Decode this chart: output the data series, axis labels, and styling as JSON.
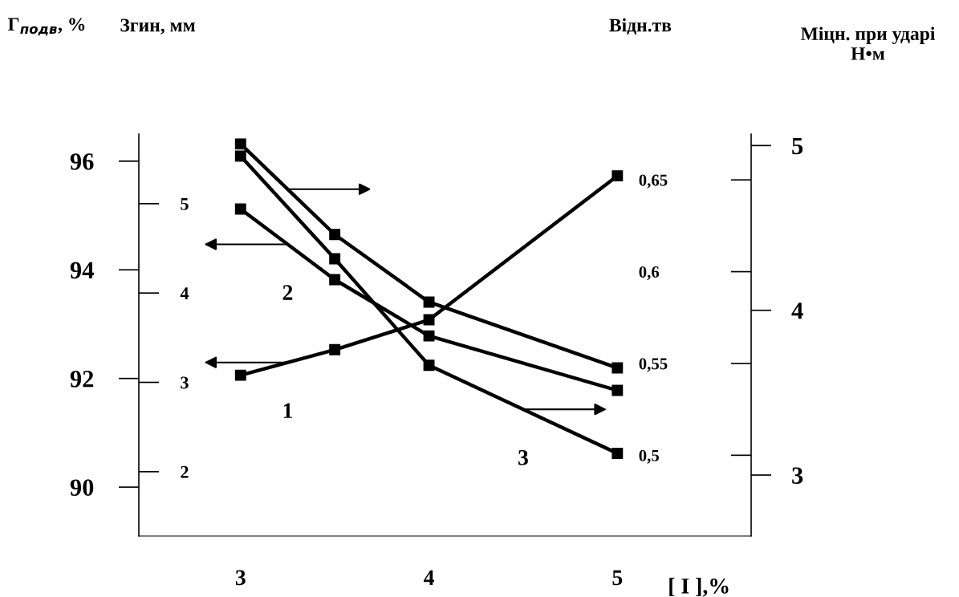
{
  "chart_data": [
    {
      "type": "line",
      "marker": "square",
      "line_style": "solid",
      "grid": false,
      "x": [
        3,
        3.5,
        4,
        5
      ],
      "xlim": [
        2.46,
        5.71
      ],
      "xticks": [
        3,
        4,
        5
      ],
      "xlabel": "[ I ],%",
      "ylabel": "Г$_{подв}$, %",
      "ylim": [
        89.1,
        96.5
      ],
      "yticks": [
        90,
        92,
        94,
        96
      ],
      "y2label": "Згин, мм",
      "y2lim": [
        1.28,
        5.78
      ],
      "y2ticks": [
        2,
        3,
        4,
        5
      ],
      "series": [
        {
          "name": "1",
          "color": "#000000",
          "values": [
            92.06,
            92.53,
            93.08,
            95.73
          ]
        },
        {
          "name": "2",
          "color": "#000000",
          "axis": "y2",
          "values": [
            4.94,
            4.15,
            3.52,
            2.91
          ]
        }
      ]
    },
    {
      "type": "line",
      "marker": "square",
      "line_style": "solid",
      "grid": false,
      "tick_labels": "y",
      "x": [
        3,
        3.5,
        4,
        5
      ],
      "xlim": [
        2.46,
        5.71
      ],
      "y2label": "Відн.тв",
      "y2lim": [
        0.456,
        0.675
      ],
      "y2ticks": [
        {
          "value": 0.5,
          "label": "0,5"
        },
        {
          "value": 0.55,
          "label": "0,55"
        },
        {
          "value": 0.6,
          "label": "0,6"
        },
        {
          "value": 0.65,
          "label": "0,65"
        }
      ],
      "y3label": "Міцн. при ударі\nН•м",
      "y3lim": [
        2.63,
        5.07
      ],
      "y3ticks": [
        3,
        4,
        5
      ],
      "series": [
        {
          "color": "#000000",
          "axis": "y3",
          "values": [
            5.01,
            4.46,
            4.05,
            3.65
          ]
        },
        {
          "name": "3",
          "color": "#000000",
          "axis": "y2",
          "values": [
            0.663,
            0.607,
            0.549,
            0.501
          ]
        }
      ]
    }
  ]
}
